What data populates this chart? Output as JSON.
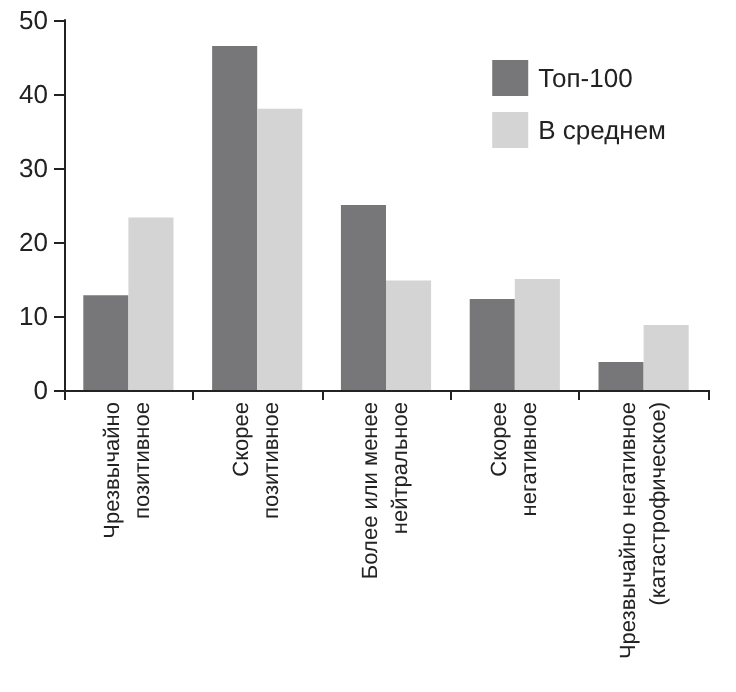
{
  "chart_data": {
    "type": "bar",
    "categories": [
      "Чрезвычайно\nпозитивное",
      "Скорее\nпозитивное",
      "Более или менее\nнейтральное",
      "Скорее\nнегативное",
      "Чрезвычайно негативное\n(катастрофическое)"
    ],
    "series": [
      {
        "name": "Топ-100",
        "color": "#77777a",
        "values": [
          12.8,
          46.5,
          25,
          12.3,
          3.8
        ]
      },
      {
        "name": "В среднем",
        "color": "#d4d4d4",
        "values": [
          23.3,
          38,
          14.8,
          15,
          8.8
        ]
      }
    ],
    "ylim": [
      0,
      50
    ],
    "yticks": [
      0,
      10,
      20,
      30,
      40,
      50
    ],
    "grid": false,
    "legend": "top right"
  }
}
